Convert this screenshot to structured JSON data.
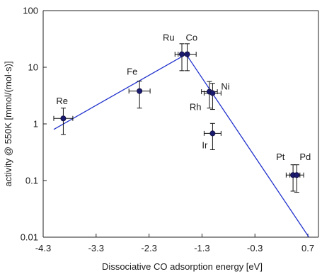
{
  "chart_data": {
    "type": "scatter",
    "xlabel": "Dissociative CO adsorption energy [eV]",
    "ylabel": "activity @ 550K [mmol/(mol·s)]",
    "xlim": [
      -4.3,
      0.9
    ],
    "ylim": [
      0.01,
      100
    ],
    "y_scale": "log",
    "x_ticks": [
      -4.3,
      -3.3,
      -2.3,
      -1.3,
      -0.3,
      0.7
    ],
    "x_tick_labels": [
      "-4.3",
      "-3.3",
      "-2.3",
      "-1.3",
      "-0.3",
      "0.7"
    ],
    "y_ticks": [
      0.01,
      0.1,
      1,
      10,
      100
    ],
    "y_tick_labels": [
      "0.01",
      "0.1",
      "1",
      "10",
      "100"
    ],
    "grid": false,
    "point_color": "#1a1a6e",
    "line_color": "#2233cc",
    "points": [
      {
        "label": "Re",
        "x": -3.92,
        "y": 1.25,
        "xerr": 0.18,
        "ylo": 0.65,
        "yhi": 1.9
      },
      {
        "label": "Fe",
        "x": -2.48,
        "y": 3.8,
        "xerr": 0.2,
        "ylo": 1.9,
        "yhi": 5.7
      },
      {
        "label": "Ru",
        "x": -1.68,
        "y": 17,
        "xerr": 0.13,
        "ylo": 8.7,
        "yhi": 26
      },
      {
        "label": "Co",
        "x": -1.58,
        "y": 17,
        "xerr": 0.17,
        "ylo": 8.7,
        "yhi": 26
      },
      {
        "label": "Rh",
        "x": -1.16,
        "y": 3.7,
        "xerr": 0.15,
        "ylo": 1.9,
        "yhi": 5.6
      },
      {
        "label": "Ni",
        "x": -1.1,
        "y": 3.5,
        "xerr": 0.16,
        "ylo": 1.8,
        "yhi": 5.2
      },
      {
        "label": "Ir",
        "x": -1.1,
        "y": 0.68,
        "xerr": 0.16,
        "ylo": 0.35,
        "yhi": 1.02
      },
      {
        "label": "Pt",
        "x": 0.42,
        "y": 0.125,
        "xerr": 0.13,
        "ylo": 0.065,
        "yhi": 0.19
      },
      {
        "label": "Pd",
        "x": 0.49,
        "y": 0.125,
        "xerr": 0.13,
        "ylo": 0.062,
        "yhi": 0.19
      }
    ],
    "fit_lines": [
      {
        "name": "left-branch",
        "x": [
          -4.1,
          -1.6
        ],
        "y": [
          0.8,
          17
        ]
      },
      {
        "name": "right-branch",
        "x": [
          -1.6,
          0.72
        ],
        "y": [
          17,
          0.01
        ]
      }
    ]
  }
}
